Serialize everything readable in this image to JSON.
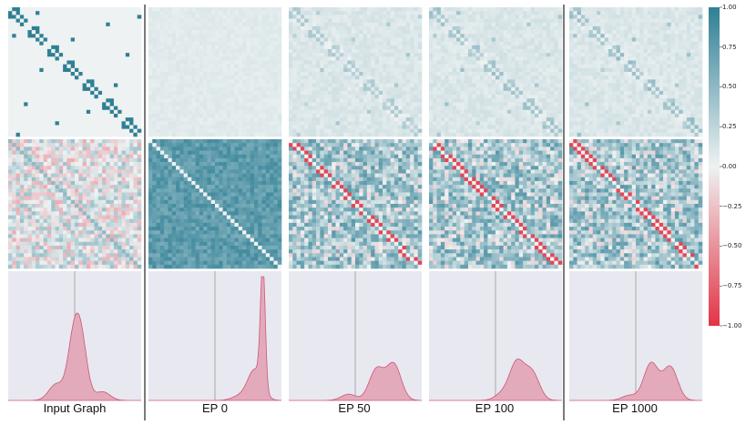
{
  "colors": {
    "positive": "#2f7f95",
    "neutral": "#eef2f2",
    "negative": "#e33346",
    "kde_fill": "#e3aabb",
    "kde_line": "#cc5577",
    "kde_background": "#e8e8f0",
    "zero_line": "#999999"
  },
  "columns": [
    {
      "id": "input",
      "label": "Input Graph"
    },
    {
      "id": "ep0",
      "label": "EP 0"
    },
    {
      "id": "ep50",
      "label": "EP 50"
    },
    {
      "id": "ep100",
      "label": "EP 100"
    },
    {
      "id": "ep1000",
      "label": "EP 1000"
    }
  ],
  "colorbar": {
    "min": -1.0,
    "max": 1.0,
    "ticks": [
      "1.00",
      "0.75",
      "0.50",
      "0.25",
      "0.00",
      "−0.25",
      "−0.50",
      "−0.75",
      "−1.00"
    ]
  },
  "chart_data": [
    {
      "type": "heatmap",
      "row": "adjacency",
      "column": "Input Graph",
      "size": 34,
      "pattern": "block_diagonal_binary",
      "value_range": [
        0,
        1
      ]
    },
    {
      "type": "heatmap",
      "row": "adjacency",
      "column": "EP 0",
      "size": 34,
      "pattern": "faint_uniform",
      "value_range": [
        0,
        0.1
      ]
    },
    {
      "type": "heatmap",
      "row": "adjacency",
      "column": "EP 50",
      "size": 34,
      "pattern": "faint_block_diagonal",
      "value_range": [
        0,
        0.4
      ]
    },
    {
      "type": "heatmap",
      "row": "adjacency",
      "column": "EP 100",
      "size": 34,
      "pattern": "faint_block_diagonal",
      "value_range": [
        0,
        0.45
      ]
    },
    {
      "type": "heatmap",
      "row": "adjacency",
      "column": "EP 1000",
      "size": 34,
      "pattern": "faint_block_diagonal",
      "value_range": [
        0,
        0.5
      ]
    },
    {
      "type": "heatmap",
      "row": "correlation",
      "column": "Input Graph",
      "size": 34,
      "pattern": "mixed_weak",
      "value_range": [
        -0.4,
        0.5
      ]
    },
    {
      "type": "heatmap",
      "row": "correlation",
      "column": "EP 0",
      "size": 34,
      "pattern": "uniform_positive",
      "value_range": [
        0.6,
        0.9
      ]
    },
    {
      "type": "heatmap",
      "row": "correlation",
      "column": "EP 50",
      "size": 34,
      "pattern": "mixed_negative_offdiag",
      "value_range": [
        -1,
        0.8
      ]
    },
    {
      "type": "heatmap",
      "row": "correlation",
      "column": "EP 100",
      "size": 34,
      "pattern": "mixed_negative_offdiag",
      "value_range": [
        -1,
        0.8
      ]
    },
    {
      "type": "heatmap",
      "row": "correlation",
      "column": "EP 1000",
      "size": 34,
      "pattern": "mixed_negative_offdiag",
      "value_range": [
        -0.9,
        0.8
      ]
    },
    {
      "type": "area",
      "row": "density",
      "column": "Input Graph",
      "x_range": [
        -1,
        1
      ],
      "zero_line": 0,
      "peaks": [
        {
          "x": -0.02,
          "height": 0.44
        },
        {
          "x": 0.1,
          "height": 0.44
        },
        {
          "x": -0.28,
          "height": 0.13
        },
        {
          "x": 0.42,
          "height": 0.07
        }
      ]
    },
    {
      "type": "area",
      "row": "density",
      "column": "EP 0",
      "x_range": [
        -1,
        1
      ],
      "zero_line": 0,
      "peaks": [
        {
          "x": 0.72,
          "height": 1.0
        },
        {
          "x": 0.6,
          "height": 0.25
        },
        {
          "x": 0.35,
          "height": 0.03
        }
      ]
    },
    {
      "type": "area",
      "row": "density",
      "column": "EP 50",
      "x_range": [
        -1,
        1
      ],
      "zero_line": 0,
      "peaks": [
        {
          "x": 0.32,
          "height": 0.25
        },
        {
          "x": 0.58,
          "height": 0.29
        },
        {
          "x": -0.1,
          "height": 0.05
        }
      ]
    },
    {
      "type": "area",
      "row": "density",
      "column": "EP 100",
      "x_range": [
        -1,
        1
      ],
      "zero_line": 0,
      "peaks": [
        {
          "x": 0.32,
          "height": 0.3
        },
        {
          "x": 0.55,
          "height": 0.22
        },
        {
          "x": 0.1,
          "height": 0.05
        }
      ]
    },
    {
      "type": "area",
      "row": "density",
      "column": "EP 1000",
      "x_range": [
        -1,
        1
      ],
      "zero_line": 0,
      "peaks": [
        {
          "x": 0.23,
          "height": 0.3
        },
        {
          "x": 0.52,
          "height": 0.27
        },
        {
          "x": -0.1,
          "height": 0.04
        }
      ]
    }
  ]
}
